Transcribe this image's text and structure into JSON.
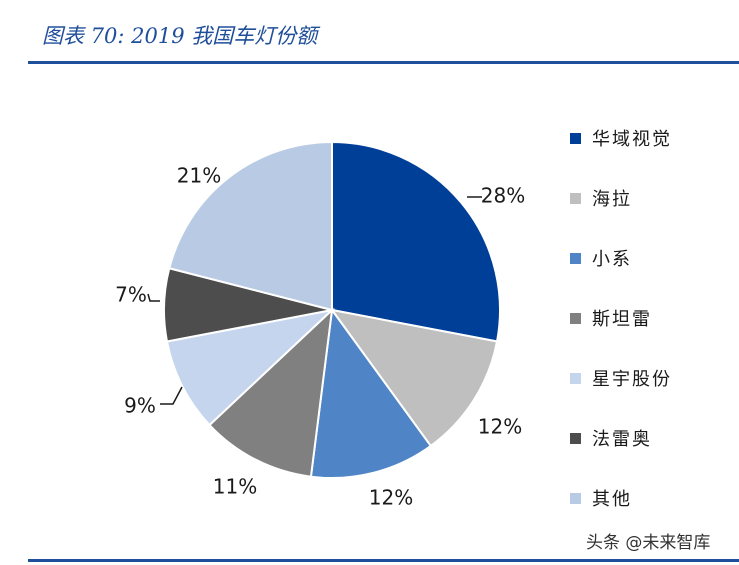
{
  "header": {
    "title": "图表 70:  2019 我国车灯份额"
  },
  "watermark": "头条 @未来智库",
  "chart_data": {
    "type": "pie",
    "title": "图表 70:  2019 我国车灯份额",
    "legend_position": "right",
    "slices": [
      {
        "label": "华域视觉",
        "value": 28,
        "display": "28%",
        "color": "#003f98"
      },
      {
        "label": "海拉",
        "value": 12,
        "display": "12%",
        "color": "#bfbfbf"
      },
      {
        "label": "小系",
        "value": 12,
        "display": "12%",
        "color": "#4f85c6"
      },
      {
        "label": "斯坦雷",
        "value": 11,
        "display": "11%",
        "color": "#808080"
      },
      {
        "label": "星宇股份",
        "value": 9,
        "display": "9%",
        "color": "#c6d5ee"
      },
      {
        "label": "法雷奥",
        "value": 7,
        "display": "7%",
        "color": "#4d4d4d"
      },
      {
        "label": "其他",
        "value": 21,
        "display": "21%",
        "color": "#b9cbe4"
      }
    ]
  }
}
